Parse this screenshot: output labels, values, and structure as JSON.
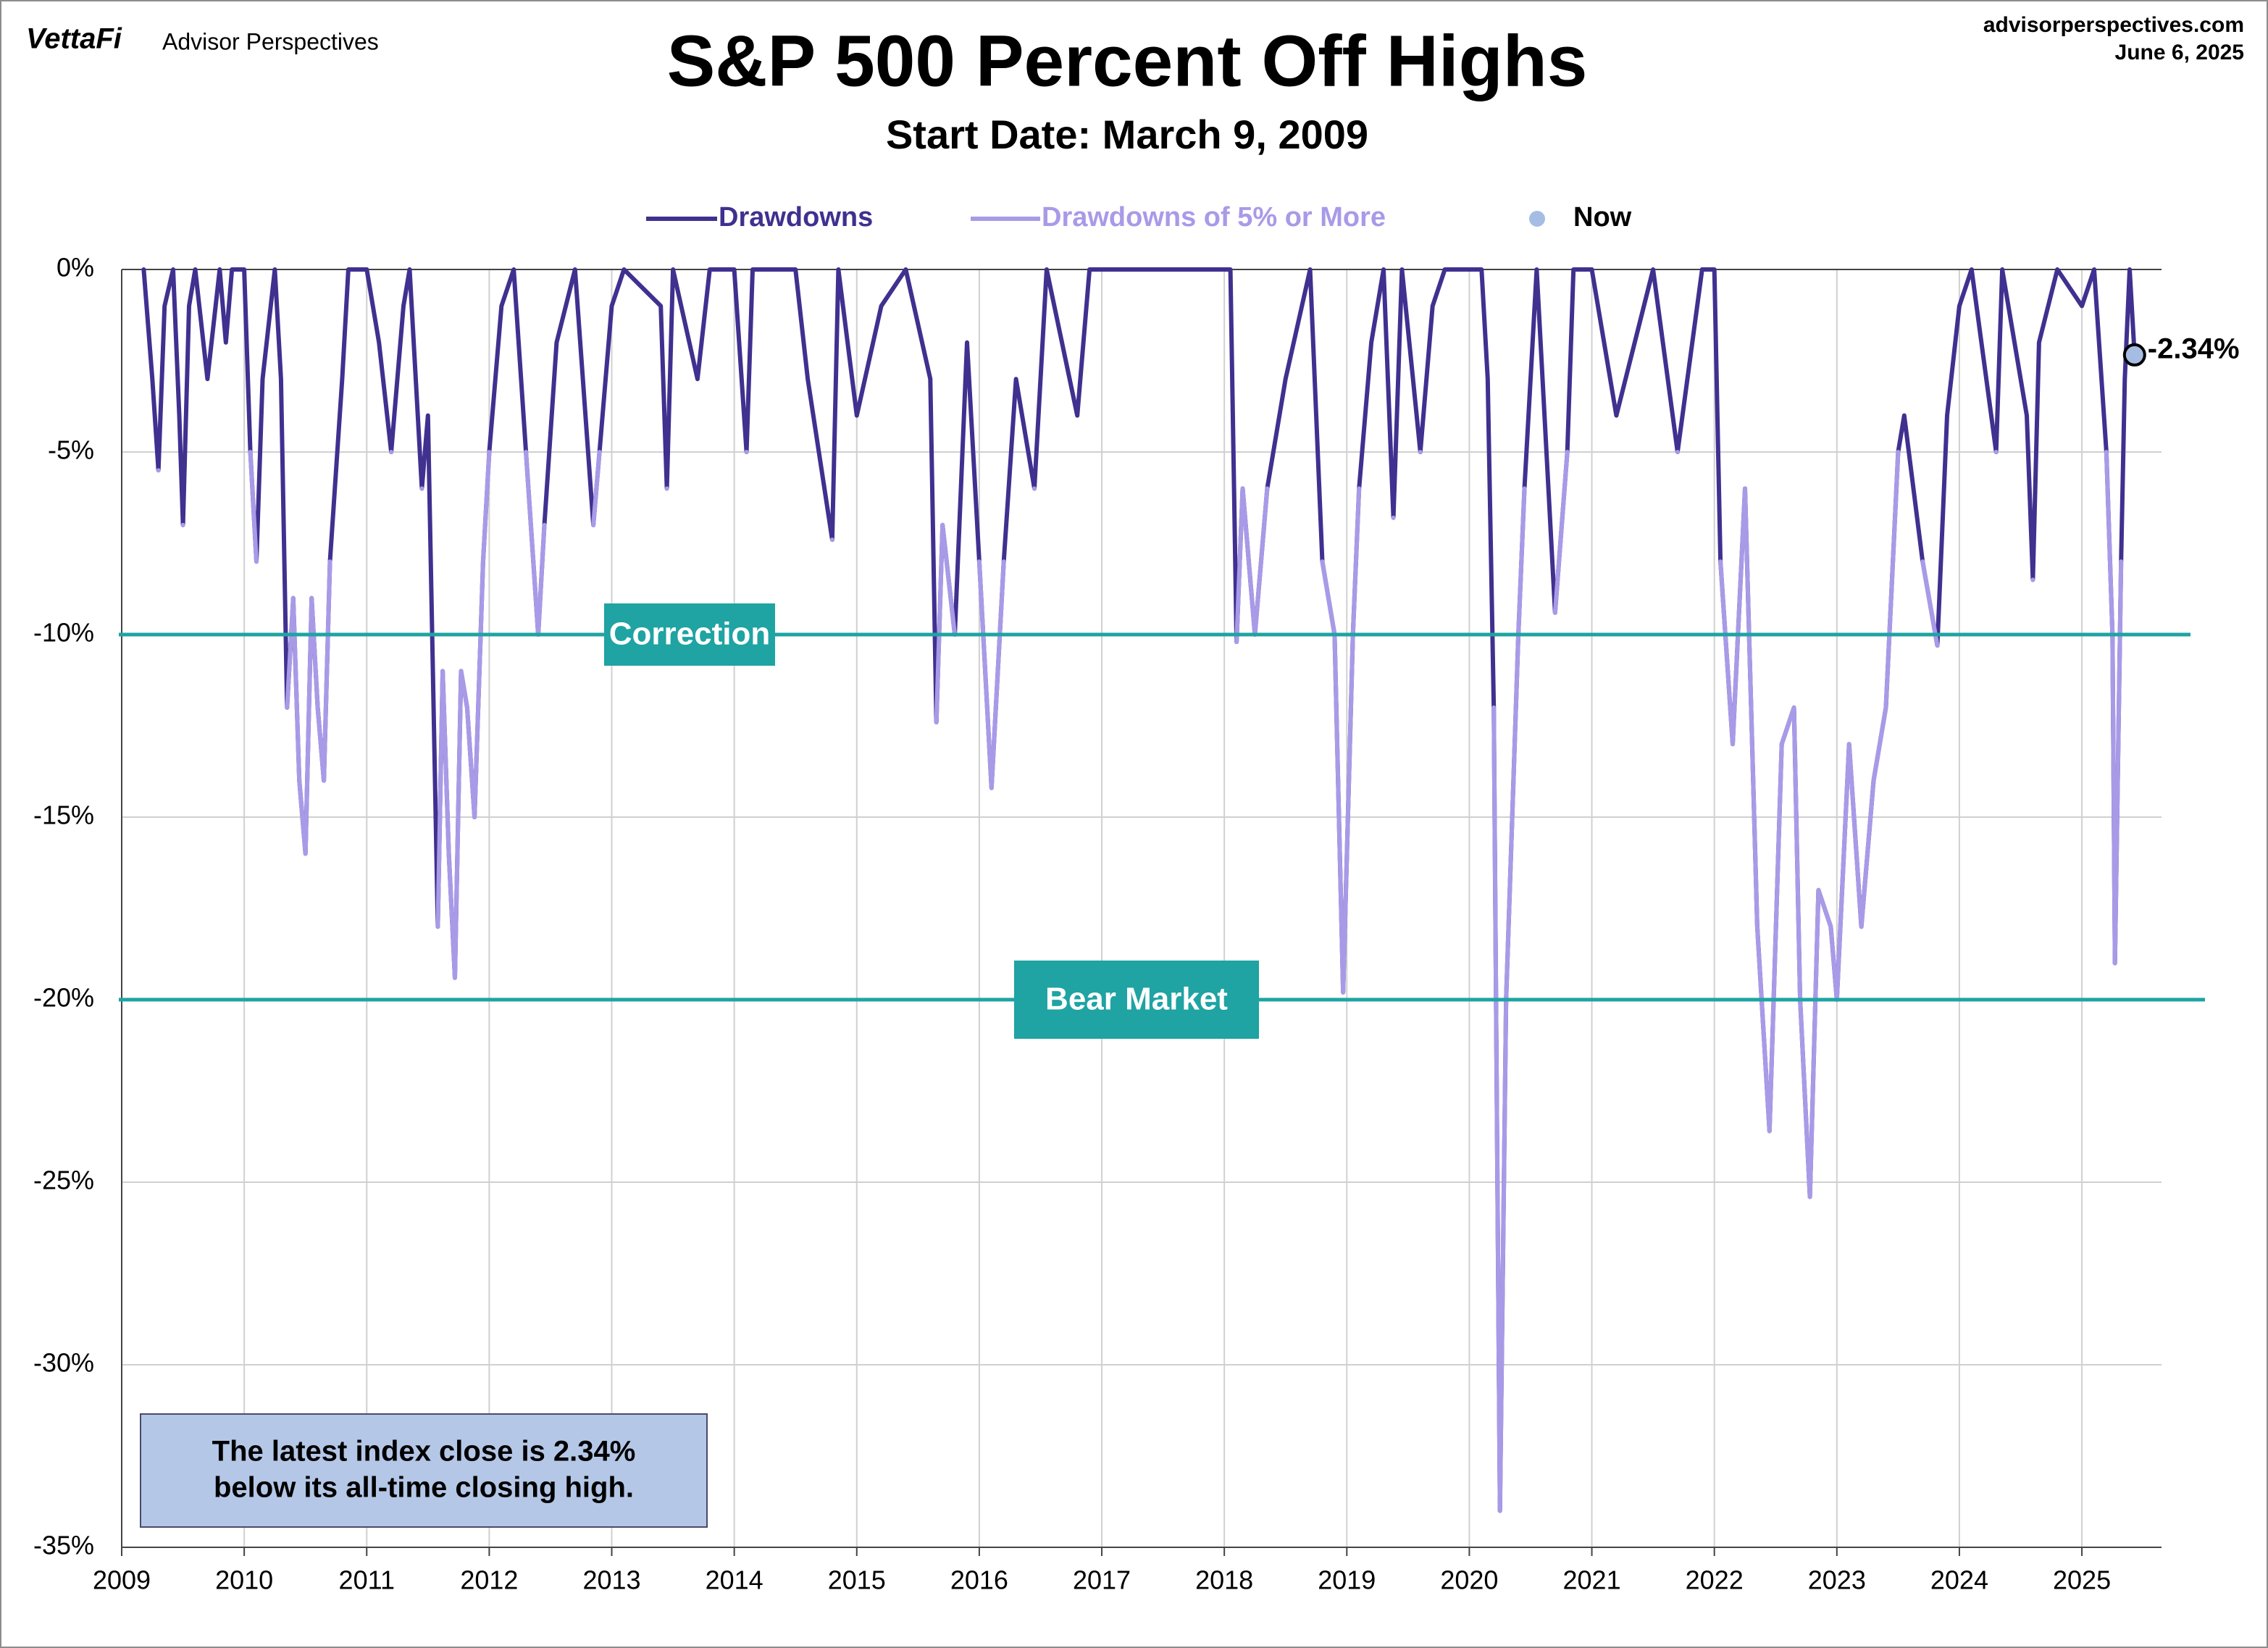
{
  "chart_data": {
    "type": "line",
    "brand": "VettaFi",
    "publisher": "Advisor Perspectives",
    "site": "advisorperspectives.com",
    "date": "June 6, 2025",
    "title": "S&P 500 Percent Off Highs",
    "subtitle": "Start Date: March 9, 2009",
    "xlim": [
      2009,
      2025.65
    ],
    "xticks": [
      2009,
      2010,
      2011,
      2012,
      2013,
      2014,
      2015,
      2016,
      2017,
      2018,
      2019,
      2020,
      2021,
      2022,
      2023,
      2024,
      2025
    ],
    "ylim": [
      -35,
      0
    ],
    "yticks": [
      {
        "value": -35,
        "label": "-35%"
      },
      {
        "value": -30,
        "label": "-30%"
      },
      {
        "value": -25,
        "label": "-25%"
      },
      {
        "value": -20,
        "label": "-20%"
      },
      {
        "value": -15,
        "label": "-15%"
      },
      {
        "value": -10,
        "label": "-10%"
      },
      {
        "value": -5,
        "label": "-5%"
      },
      {
        "value": 0,
        "label": "0%"
      }
    ],
    "grid": true,
    "x": [
      2009.18,
      2009.25,
      2009.3,
      2009.35,
      2009.42,
      2009.47,
      2009.5,
      2009.55,
      2009.6,
      2009.7,
      2009.8,
      2009.85,
      2009.9,
      2010.0,
      2010.05,
      2010.1,
      2010.15,
      2010.25,
      2010.3,
      2010.35,
      2010.4,
      2010.45,
      2010.5,
      2010.55,
      2010.6,
      2010.65,
      2010.7,
      2010.8,
      2010.85,
      2011.0,
      2011.1,
      2011.2,
      2011.3,
      2011.35,
      2011.45,
      2011.5,
      2011.58,
      2011.62,
      2011.67,
      2011.72,
      2011.77,
      2011.82,
      2011.88,
      2011.95,
      2012.0,
      2012.1,
      2012.2,
      2012.3,
      2012.4,
      2012.45,
      2012.55,
      2012.7,
      2012.85,
      2012.9,
      2013.0,
      2013.1,
      2013.4,
      2013.45,
      2013.5,
      2013.7,
      2013.8,
      2014.0,
      2014.1,
      2014.15,
      2014.5,
      2014.6,
      2014.8,
      2014.85,
      2015.0,
      2015.2,
      2015.4,
      2015.6,
      2015.65,
      2015.7,
      2015.8,
      2015.9,
      2016.0,
      2016.1,
      2016.2,
      2016.3,
      2016.45,
      2016.55,
      2016.8,
      2016.9,
      2017.0,
      2017.5,
      2017.8,
      2018.05,
      2018.1,
      2018.15,
      2018.25,
      2018.35,
      2018.5,
      2018.7,
      2018.8,
      2018.9,
      2018.97,
      2019.05,
      2019.1,
      2019.2,
      2019.3,
      2019.38,
      2019.45,
      2019.6,
      2019.7,
      2019.8,
      2020.1,
      2020.15,
      2020.2,
      2020.25,
      2020.3,
      2020.4,
      2020.45,
      2020.55,
      2020.7,
      2020.8,
      2020.85,
      2021.0,
      2021.2,
      2021.5,
      2021.7,
      2021.9,
      2022.0,
      2022.05,
      2022.15,
      2022.25,
      2022.35,
      2022.45,
      2022.55,
      2022.65,
      2022.7,
      2022.78,
      2022.85,
      2022.95,
      2023.0,
      2023.1,
      2023.2,
      2023.3,
      2023.4,
      2023.5,
      2023.55,
      2023.7,
      2023.82,
      2023.9,
      2024.0,
      2024.1,
      2024.3,
      2024.35,
      2024.55,
      2024.6,
      2024.65,
      2024.8,
      2025.0,
      2025.1,
      2025.2,
      2025.25,
      2025.27,
      2025.32,
      2025.35,
      2025.39,
      2025.43
    ],
    "series": [
      {
        "name": "Drawdowns",
        "color": "#40308f",
        "values": [
          0,
          -3,
          -5.5,
          -1,
          0,
          -4,
          -7,
          -1,
          0,
          -3,
          0,
          -2,
          0,
          0,
          -5,
          -8,
          -3,
          0,
          -3,
          -12,
          -9,
          -14,
          -16,
          -9,
          -12,
          -14,
          -8,
          -3,
          0,
          0,
          -2,
          -5,
          -1,
          0,
          -6,
          -4,
          -18,
          -11,
          -16,
          -19.4,
          -11,
          -12,
          -15,
          -8,
          -5,
          -1,
          0,
          -5,
          -10,
          -7,
          -2,
          0,
          -7,
          -5,
          -1,
          0,
          -1,
          -6,
          0,
          -3,
          0,
          0,
          -5,
          0,
          0,
          -3,
          -7.4,
          0,
          -4,
          -1,
          0,
          -3,
          -12.4,
          -7,
          -10,
          -2,
          -8,
          -14.2,
          -8,
          -3,
          -6,
          0,
          -4,
          0,
          0,
          0,
          0,
          0,
          -10.2,
          -6,
          -10,
          -6,
          -3,
          0,
          -8,
          -10,
          -19.8,
          -10,
          -6,
          -2,
          0,
          -6.8,
          0,
          -5,
          -1,
          0,
          0,
          -3,
          -12,
          -34,
          -20,
          -10,
          -6,
          0,
          -9.4,
          -5,
          0,
          0,
          -4,
          0,
          -5,
          0,
          0,
          -8,
          -13,
          -6,
          -18,
          -23.6,
          -13,
          -12,
          -20,
          -25.4,
          -17,
          -18,
          -20,
          -13,
          -18,
          -14,
          -12,
          -5,
          -4,
          -8,
          -10.3,
          -4,
          -1,
          0,
          -5,
          0,
          -4,
          -8.5,
          -2,
          0,
          -1,
          0,
          -5,
          -10,
          -19,
          -8,
          -3,
          0,
          -2.34
        ]
      },
      {
        "name": "Drawdowns of 5% or More",
        "color": "#a99ae8",
        "values": [
          null,
          null,
          -5.5,
          null,
          null,
          null,
          -7,
          null,
          null,
          null,
          null,
          null,
          null,
          null,
          -5,
          -8,
          null,
          null,
          null,
          -12,
          -9,
          -14,
          -16,
          -9,
          -12,
          -14,
          -8,
          null,
          null,
          null,
          null,
          -5,
          null,
          null,
          -6,
          null,
          -18,
          -11,
          -16,
          -19.4,
          -11,
          -12,
          -15,
          -8,
          -5,
          null,
          null,
          -5,
          -10,
          -7,
          null,
          null,
          -7,
          -5,
          null,
          null,
          null,
          -6,
          null,
          null,
          null,
          null,
          -5,
          null,
          null,
          null,
          -7.4,
          null,
          null,
          null,
          null,
          null,
          -12.4,
          -7,
          -10,
          null,
          -8,
          -14.2,
          -8,
          null,
          -6,
          null,
          null,
          null,
          null,
          null,
          null,
          null,
          -10.2,
          -6,
          -10,
          -6,
          null,
          null,
          -8,
          -10,
          -19.8,
          -10,
          -6,
          null,
          null,
          -6.8,
          null,
          -5,
          null,
          null,
          null,
          null,
          -12,
          -34,
          -20,
          -10,
          -6,
          null,
          -9.4,
          -5,
          null,
          null,
          null,
          null,
          -5,
          null,
          null,
          -8,
          -13,
          -6,
          -18,
          -23.6,
          -13,
          -12,
          -20,
          -25.4,
          -17,
          -18,
          -20,
          -13,
          -18,
          -14,
          -12,
          -5,
          null,
          -8,
          -10.3,
          null,
          null,
          null,
          -5,
          null,
          null,
          -8.5,
          null,
          null,
          null,
          null,
          -5,
          -10,
          -19,
          -8,
          null,
          null,
          null
        ]
      }
    ],
    "now": {
      "name": "Now",
      "color": "#a6bde3",
      "x": 2025.43,
      "value": -2.34,
      "value_label": "-2.34%"
    },
    "reference_lines": [
      {
        "label": "Correction",
        "value": -10,
        "color": "#1fa3a3"
      },
      {
        "label": "Bear Market",
        "value": -20,
        "color": "#1fa3a3"
      }
    ],
    "note": [
      "The latest index close is 2.34%",
      "below its all-time closing high."
    ]
  }
}
